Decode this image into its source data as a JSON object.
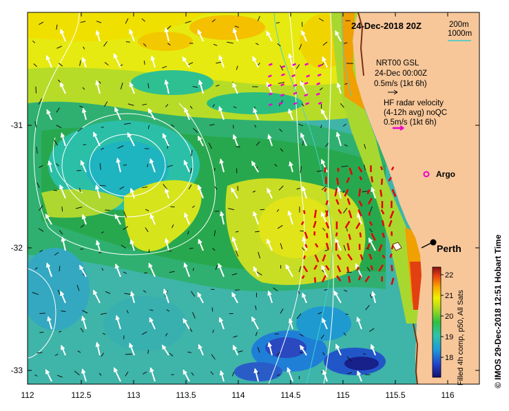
{
  "map": {
    "title": "24-Dec-2018 20Z",
    "depth_contours": [
      {
        "label": "200m",
        "color": "#ffffff"
      },
      {
        "label": "1000m",
        "color": "#33cccc"
      }
    ],
    "x_ticks": [
      "112",
      "112.5",
      "113",
      "113.5",
      "114",
      "114.5",
      "115",
      "115.5",
      "116"
    ],
    "y_ticks": [
      "-31",
      "-32",
      "-33"
    ],
    "gsl_legend": {
      "line1": "NRT00 GSL",
      "line2": "24-Dec 00:00Z",
      "line3": "0.5m/s (1kt 6h)",
      "color": "#000000"
    },
    "hf_legend": {
      "line1": "HF radar velocity",
      "line2": "(4-12h avg) noQC",
      "line3": "0.5m/s (1kt 6h)",
      "color": "#ee00cc"
    },
    "argo_label": "Argo",
    "argo_color": "#ee00cc",
    "city_label": "Perth",
    "colorbar": {
      "title": "Filled 4h comp, p50, All Sats",
      "ticks": [
        "22",
        "21",
        "20",
        "19",
        "18"
      ]
    },
    "credit": "© IMOS 29-Dec-2018 12:51 Hobart Time",
    "land_color": "#f7c79a"
  }
}
